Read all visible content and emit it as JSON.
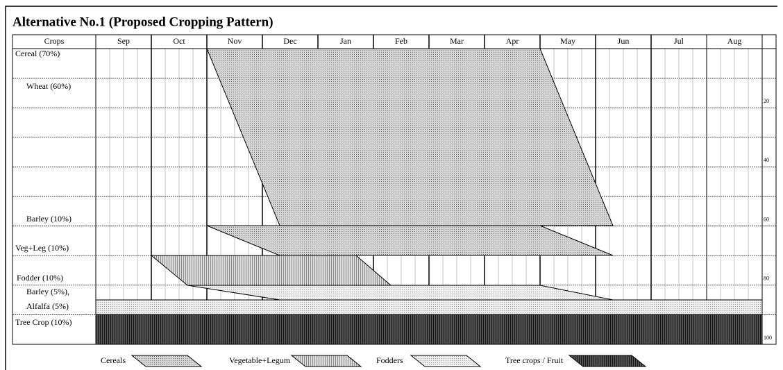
{
  "title": "Alternative No.1 (Proposed Cropping Pattern)",
  "table": {
    "header": "Crops",
    "months": [
      "Sep",
      "Oct",
      "Nov",
      "Dec",
      "Jan",
      "Feb",
      "Mar",
      "Apr",
      "May",
      "Jun",
      "Jul",
      "Aug"
    ],
    "rows": [
      "Cereal (70%)",
      "Wheat (60%)",
      "Barley (10%)",
      "Veg+Leg (10%)",
      "Fodder  (10%)",
      "Barley (5%),",
      "Alfalfa (5%)",
      "Tree Crop (10%)"
    ],
    "scale": [
      20,
      40,
      60,
      80,
      100
    ]
  },
  "legend": [
    "Cereals",
    "Vegetable+Legum",
    "Fodders",
    "Tree crops / Fruit"
  ]
}
